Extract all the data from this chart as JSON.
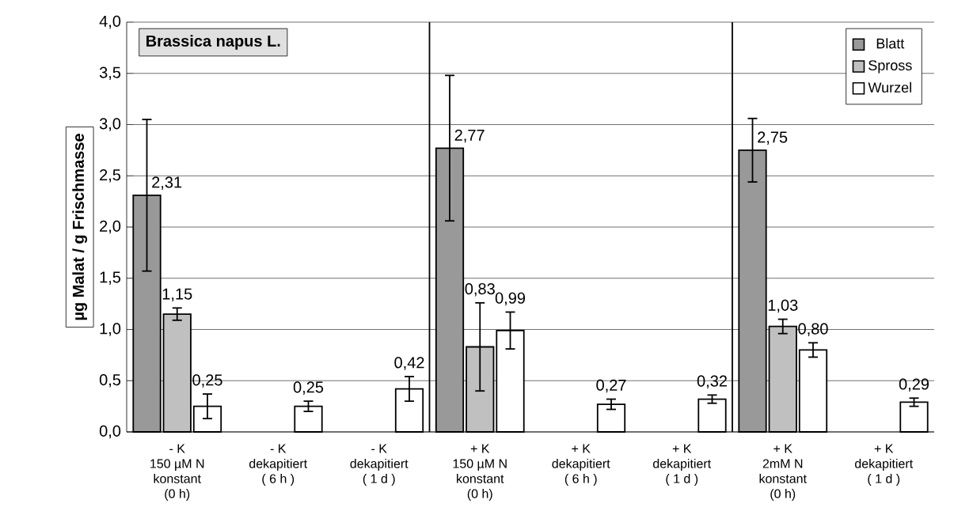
{
  "chart_data": {
    "type": "bar",
    "title": "Brassica napus L.",
    "ylabel": "µg Malat / g Frischmasse",
    "categories": [
      "- K\n150 µM N\nkonstant\n(0 h)",
      "- K\ndekapitiert\n( 6 h )",
      "- K\ndekapitiert\n( 1 d )",
      "+ K\n150 µM N\nkonstant\n(0 h)",
      "+ K\ndekapitiert\n( 6 h )",
      "+ K\ndekapitiert\n( 1 d )",
      "+ K\n2mM N\nkonstant\n(0 h)",
      "+ K\ndekapitiert\n( 1 d )"
    ],
    "series": [
      {
        "name": "Blatt",
        "color": "#999999",
        "values": [
          2.31,
          null,
          null,
          2.77,
          null,
          null,
          2.75,
          null
        ],
        "errors": [
          0.74,
          null,
          null,
          0.71,
          null,
          null,
          0.31,
          null
        ],
        "value_labels": [
          "2,31",
          null,
          null,
          "2,77",
          null,
          null,
          "2,75",
          null
        ]
      },
      {
        "name": "Spross",
        "color": "#c0c0c0",
        "values": [
          1.15,
          null,
          null,
          0.83,
          null,
          null,
          1.03,
          null
        ],
        "errors": [
          0.06,
          null,
          null,
          0.43,
          null,
          null,
          0.07,
          null
        ],
        "value_labels": [
          "1,15",
          null,
          null,
          "0,83",
          null,
          null,
          "1,03",
          null
        ]
      },
      {
        "name": "Wurzel",
        "color": "#ffffff",
        "values": [
          0.25,
          0.25,
          0.42,
          0.99,
          0.27,
          0.32,
          0.8,
          0.29
        ],
        "errors": [
          0.12,
          0.05,
          0.12,
          0.18,
          0.05,
          0.04,
          0.07,
          0.04
        ],
        "value_labels": [
          "0,25",
          "0,25",
          "0,42",
          "0,99",
          "0,27",
          "0,32",
          "0,80",
          "0,29"
        ]
      }
    ],
    "ylim": [
      0,
      4
    ],
    "yticks": [
      {
        "value": 0,
        "label": "0,0"
      },
      {
        "value": 0.5,
        "label": "0,5"
      },
      {
        "value": 1,
        "label": "1,0"
      },
      {
        "value": 1.5,
        "label": "1,5"
      },
      {
        "value": 2,
        "label": "2,0"
      },
      {
        "value": 2.5,
        "label": "2,5"
      },
      {
        "value": 3,
        "label": "3,0"
      },
      {
        "value": 3.5,
        "label": "3,5"
      },
      {
        "value": 4,
        "label": "4,0"
      }
    ],
    "grid": "y",
    "legend": "top right"
  }
}
